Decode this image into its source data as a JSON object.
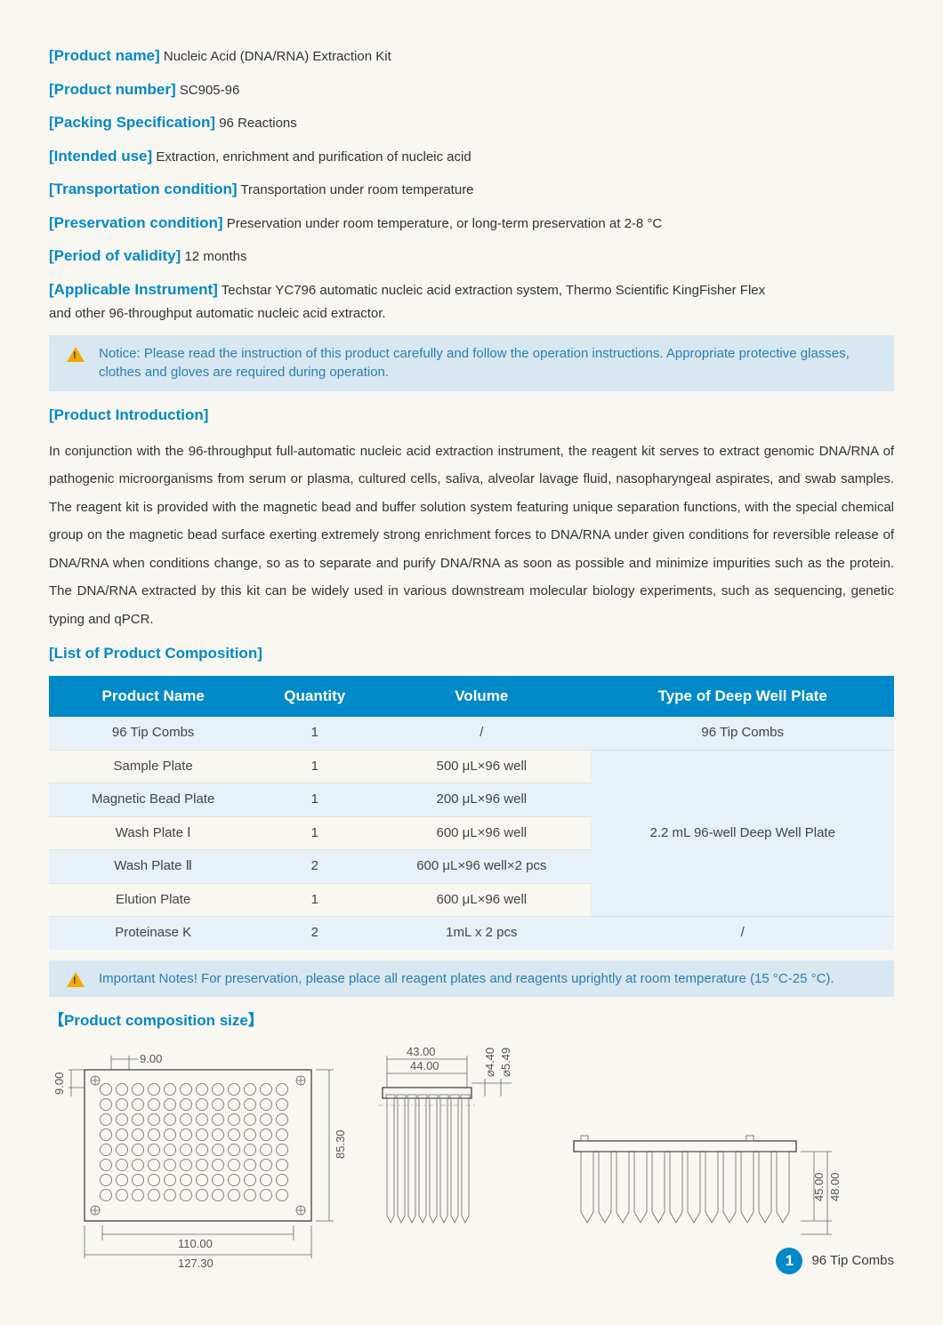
{
  "meta": [
    {
      "label": "[Product name]",
      "value": "Nucleic Acid (DNA/RNA) Extraction Kit"
    },
    {
      "label": "[Product number]",
      "value": "SC905-96"
    },
    {
      "label": "[Packing Specification]",
      "value": "96 Reactions"
    },
    {
      "label": "[Intended use]",
      "value": "Extraction, enrichment and purification of nucleic acid"
    },
    {
      "label": "[Transportation condition]",
      "value": "Transportation under room temperature"
    },
    {
      "label": "[Preservation condition]",
      "value": "Preservation under room temperature, or long-term preservation at 2-8 °C"
    },
    {
      "label": "[Period of validity]",
      "value": "12 months"
    },
    {
      "label": "[Applicable Instrument]",
      "value": "Techstar YC796 automatic nucleic acid extraction system, Thermo Scientific KingFisher Flex"
    }
  ],
  "meta_cont": "and other 96-throughput automatic nucleic acid extractor.",
  "notice1": "Notice: Please read the instruction of this product carefully and follow the operation instructions. Appropriate protective glasses, clothes and gloves are required during operation.",
  "sections": {
    "intro_title": "[Product Introduction]",
    "intro_text": "In conjunction with the 96-throughput full-automatic nucleic acid extraction instrument, the reagent kit serves to extract genomic DNA/RNA of pathogenic microorganisms from serum or plasma, cultured cells, saliva, alveolar lavage fluid, nasopharyngeal aspirates, and swab samples. The reagent kit is provided with the magnetic bead and buffer solution system featuring unique separation functions, with the special chemical group on the magnetic bead surface exerting extremely strong enrichment forces to DNA/RNA under given conditions for reversible release of DNA/RNA when conditions change, so as to separate and purify DNA/RNA as soon as possible and minimize impurities such as the protein. The DNA/RNA extracted by this kit can be widely used in various downstream molecular biology experiments, such as sequencing, genetic typing and qPCR.",
    "list_title": "[List of Product Composition]",
    "size_title": "【Product composition size】"
  },
  "table": {
    "headers": [
      "Product Name",
      "Quantity",
      "Volume",
      "Type of Deep Well Plate"
    ],
    "rows": [
      {
        "cells": [
          "96 Tip Combs",
          "1",
          "/",
          "96 Tip Combs"
        ],
        "alt": true
      },
      {
        "cells": [
          "Sample Plate",
          "1",
          "500 μL×96 well"
        ],
        "alt": false,
        "merge_start": true
      },
      {
        "cells": [
          "Magnetic Bead Plate",
          "1",
          "200 μL×96 well"
        ],
        "alt": true
      },
      {
        "cells": [
          "Wash Plate Ⅰ",
          "1",
          "600 μL×96 well"
        ],
        "alt": false
      },
      {
        "cells": [
          "Wash Plate Ⅱ",
          "2",
          "600 μL×96 well×2 pcs"
        ],
        "alt": true
      },
      {
        "cells": [
          "Elution Plate",
          "1",
          "600 μL×96 well"
        ],
        "alt": false
      },
      {
        "cells": [
          "Proteinase K",
          "2",
          "1mL x 2 pcs",
          "/"
        ],
        "alt": true
      }
    ],
    "merged_text": "2.2 mL 96-well Deep Well Plate"
  },
  "notice2": "Important Notes! For preservation, please place all reagent plates and reagents uprightly at room temperature (15 °C-25 °C).",
  "dims": {
    "d9a": "9.00",
    "d9b": "9.00",
    "d8530": "85.30",
    "d110": "110.00",
    "d12730": "127.30",
    "d43": "43.00",
    "d44": "44.00",
    "d440": "⌀4.40",
    "d549": "⌀5.49",
    "d45": "45.00",
    "d48": "48.00"
  },
  "footer": {
    "num": "1",
    "label": "96 Tip Combs"
  },
  "colors": {
    "accent": "#0089c9",
    "notice_bg": "#d8e7f0",
    "warn": "#f3a900"
  }
}
